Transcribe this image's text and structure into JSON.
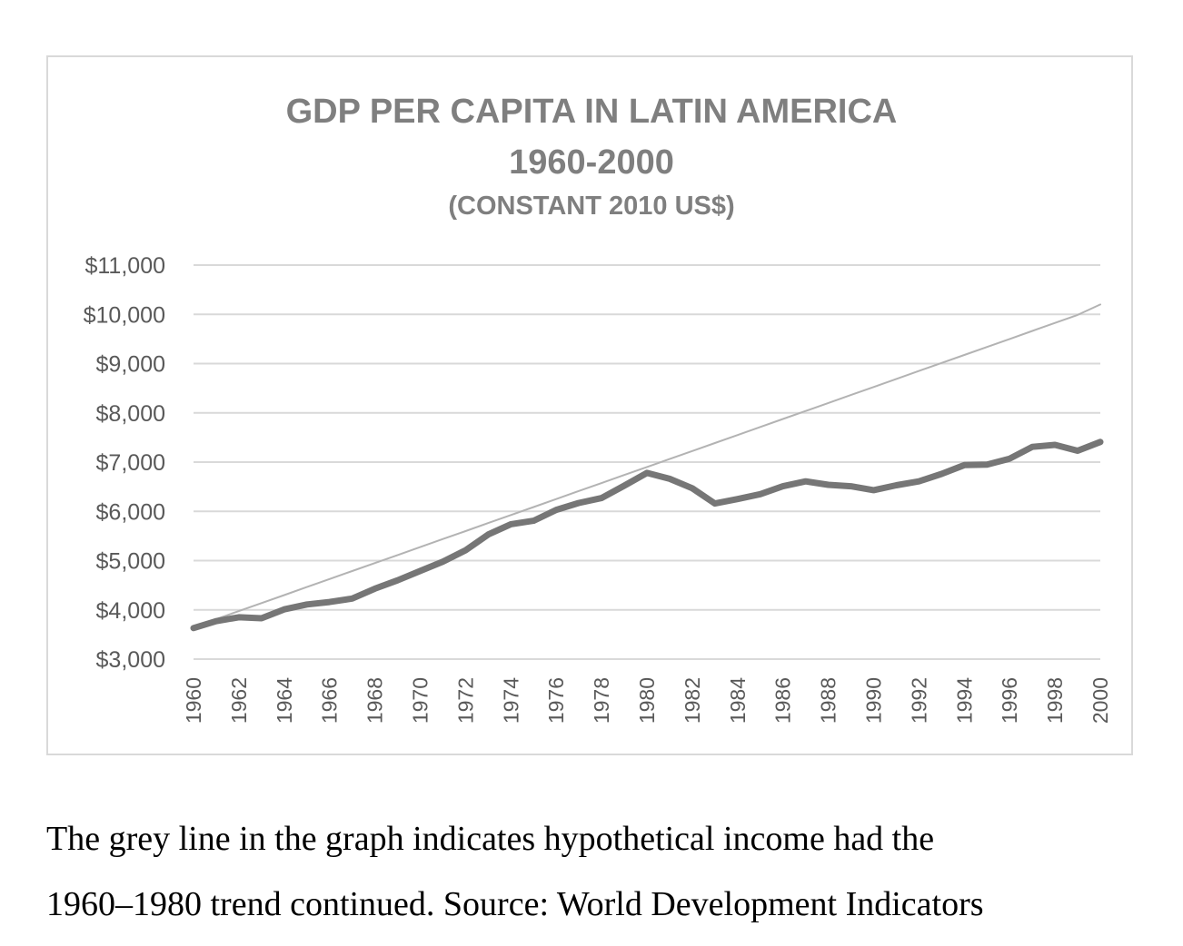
{
  "chart_data": {
    "type": "line",
    "title": [
      "GDP PER CAPITA IN LATIN AMERICA",
      "1960-2000",
      "(CONSTANT 2010 US$)"
    ],
    "xlabel": "",
    "ylabel": "",
    "ylim": [
      3000,
      11000
    ],
    "xlim": [
      1960,
      2000
    ],
    "y_ticks": [
      3000,
      4000,
      5000,
      6000,
      7000,
      8000,
      9000,
      10000,
      11000
    ],
    "y_tick_labels": [
      "$3,000",
      "$4,000",
      "$5,000",
      "$6,000",
      "$7,000",
      "$8,000",
      "$9,000",
      "$10,000",
      "$11,000"
    ],
    "x_tick_labels": [
      "1960",
      "1962",
      "1964",
      "1966",
      "1968",
      "1970",
      "1972",
      "1974",
      "1976",
      "1978",
      "1980",
      "1982",
      "1984",
      "1986",
      "1988",
      "1990",
      "1992",
      "1994",
      "1996",
      "1998",
      "2000"
    ],
    "grid": true,
    "legend": "none",
    "x": [
      1960,
      1961,
      1962,
      1963,
      1964,
      1965,
      1966,
      1967,
      1968,
      1969,
      1970,
      1971,
      1972,
      1973,
      1974,
      1975,
      1976,
      1977,
      1978,
      1979,
      1980,
      1981,
      1982,
      1983,
      1984,
      1985,
      1986,
      1987,
      1988,
      1989,
      1990,
      1991,
      1992,
      1993,
      1994,
      1995,
      1996,
      1997,
      1998,
      1999,
      2000
    ],
    "series": [
      {
        "values": [
          3630,
          3770,
          3850,
          3830,
          4010,
          4110,
          4160,
          4230,
          4430,
          4600,
          4790,
          4980,
          5210,
          5530,
          5740,
          5810,
          6030,
          6170,
          6270,
          6520,
          6780,
          6660,
          6470,
          6160,
          6250,
          6350,
          6510,
          6610,
          6540,
          6510,
          6430,
          6530,
          6610,
          6760,
          6940,
          6950,
          7070,
          7310,
          7350,
          7230,
          7410
        ],
        "color": "#767676"
      },
      {
        "values": [
          3650,
          3813,
          3975,
          4138,
          4300,
          4463,
          4625,
          4788,
          4950,
          5113,
          5275,
          5438,
          5600,
          5763,
          5925,
          6088,
          6250,
          6413,
          6575,
          6738,
          6900,
          7063,
          7225,
          7388,
          7550,
          7713,
          7875,
          8038,
          8200,
          8363,
          8525,
          8688,
          8850,
          9013,
          9175,
          9338,
          9500,
          9663,
          9825,
          9988,
          10200
        ],
        "color": "#b3b3b3"
      }
    ]
  },
  "caption": {
    "line1": "The grey line in the graph indicates hypothetical income had the",
    "line2": "1960–1980 trend continued. Source: World Development Indicators"
  },
  "colors": {
    "gridline": "#d9d9d9",
    "title": "#7f7f7f",
    "tick_text": "#595959"
  }
}
